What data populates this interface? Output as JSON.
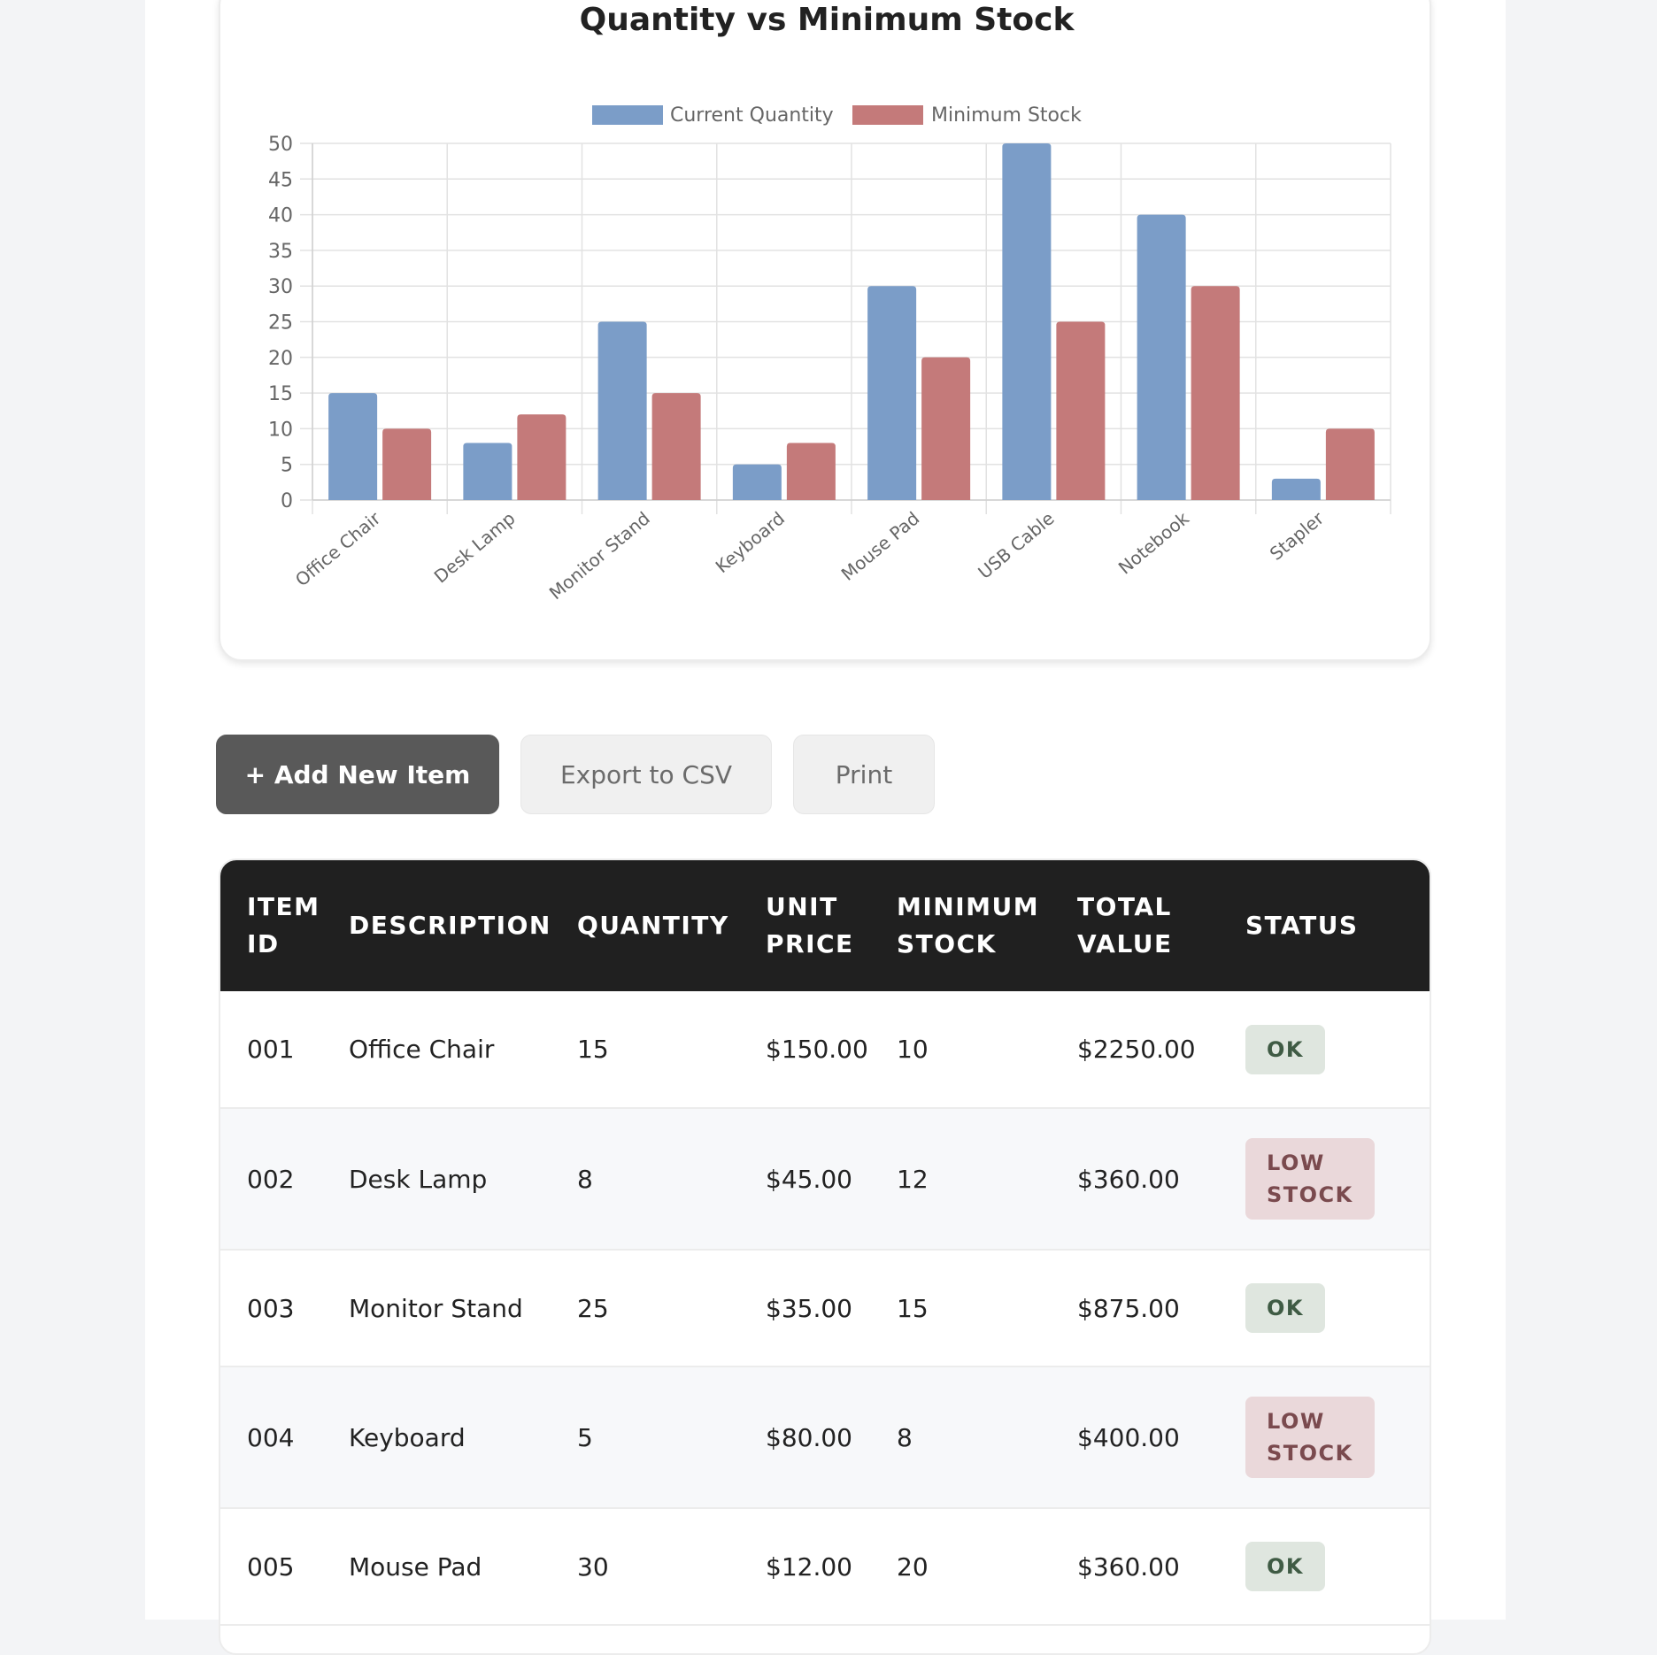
{
  "chart_data": {
    "type": "bar",
    "title": "Quantity vs Minimum Stock",
    "categories": [
      "Office Chair",
      "Desk Lamp",
      "Monitor Stand",
      "Keyboard",
      "Mouse Pad",
      "USB Cable",
      "Notebook",
      "Stapler"
    ],
    "series": [
      {
        "name": "Current Quantity",
        "values": [
          15,
          8,
          25,
          5,
          30,
          50,
          40,
          3
        ],
        "color": "#7b9dc8"
      },
      {
        "name": "Minimum Stock",
        "values": [
          10,
          12,
          15,
          8,
          20,
          25,
          30,
          10
        ],
        "color": "#c47a7a"
      }
    ],
    "ylim": [
      0,
      50
    ],
    "yticks": [
      0,
      5,
      10,
      15,
      20,
      25,
      30,
      35,
      40,
      45,
      50
    ],
    "grid": true,
    "legend_position": "top"
  },
  "toolbar": {
    "add_label": "+ Add New Item",
    "export_label": "Export to CSV",
    "print_label": "Print"
  },
  "table": {
    "headers": {
      "item_id": [
        "ITEM",
        "ID"
      ],
      "description": "DESCRIPTION",
      "quantity": "QUANTITY",
      "unit_price": [
        "UNIT",
        "PRICE"
      ],
      "minimum_stock": [
        "MINIMUM",
        "STOCK"
      ],
      "total_value": [
        "TOTAL",
        "VALUE"
      ],
      "status": "STATUS"
    },
    "rows": [
      {
        "id": "001",
        "description": "Office Chair",
        "quantity": "15",
        "unit_price": "$150.00",
        "min_stock": "10",
        "total_value": "$2250.00",
        "status": [
          "OK"
        ],
        "status_kind": "ok"
      },
      {
        "id": "002",
        "description": "Desk Lamp",
        "quantity": "8",
        "unit_price": "$45.00",
        "min_stock": "12",
        "total_value": "$360.00",
        "status": [
          "LOW",
          "STOCK"
        ],
        "status_kind": "low"
      },
      {
        "id": "003",
        "description": "Monitor Stand",
        "quantity": "25",
        "unit_price": "$35.00",
        "min_stock": "15",
        "total_value": "$875.00",
        "status": [
          "OK"
        ],
        "status_kind": "ok"
      },
      {
        "id": "004",
        "description": "Keyboard",
        "quantity": "5",
        "unit_price": "$80.00",
        "min_stock": "8",
        "total_value": "$400.00",
        "status": [
          "LOW",
          "STOCK"
        ],
        "status_kind": "low"
      },
      {
        "id": "005",
        "description": "Mouse Pad",
        "quantity": "30",
        "unit_price": "$12.00",
        "min_stock": "20",
        "total_value": "$360.00",
        "status": [
          "OK"
        ],
        "status_kind": "ok"
      }
    ]
  }
}
